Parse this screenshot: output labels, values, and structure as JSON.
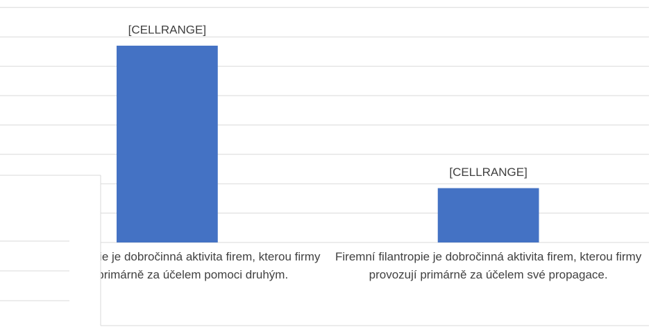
{
  "chart_data": {
    "type": "bar",
    "categories": [
      "Firemní filantropie je dobročinná aktivita firem, kterou firmy provozují primárně za účelem pomoci druhým.",
      "Firemní filantropie je dobročinná aktivita firem, kterou firmy provozují primárně za účelem své propagace."
    ],
    "values": [
      6.7,
      1.85
    ],
    "value_labels": [
      "[CELLRANGE]",
      "[CELLRANGE]"
    ],
    "color": "#4472c4",
    "ylim": [
      0,
      8
    ],
    "yticks": [
      0,
      1,
      2,
      3,
      4,
      5,
      6,
      7,
      8
    ],
    "grid": true
  }
}
